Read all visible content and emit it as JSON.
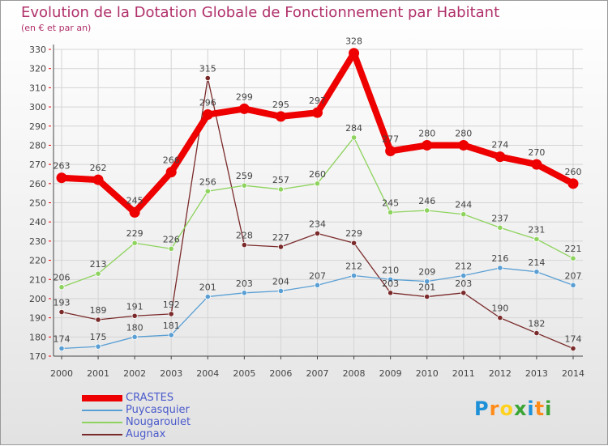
{
  "title": "Evolution de la Dotation Globale de Fonctionnement par Habitant",
  "subtitle": "(en € et par an)",
  "logo": {
    "letters": [
      "P",
      "r",
      "o",
      "x",
      "i",
      "t",
      "i"
    ],
    "colors": [
      "#1e90d8",
      "#ff8c1a",
      "#ffd21f",
      "#3aa535",
      "#1e90d8",
      "#ff8c1a",
      "#3aa535"
    ]
  },
  "chart_data": {
    "type": "line",
    "x": [
      "2000",
      "2001",
      "2002",
      "2003",
      "2004",
      "2005",
      "2006",
      "2007",
      "2008",
      "2009",
      "2010",
      "2011",
      "2012",
      "2013",
      "2014"
    ],
    "ylim": [
      170,
      330
    ],
    "yticks": [
      "170",
      "180",
      "190",
      "200",
      "210",
      "220",
      "230",
      "240",
      "250",
      "260",
      "270",
      "280",
      "290",
      "300",
      "310",
      "320",
      "330"
    ],
    "grid": true,
    "series": [
      {
        "name": "CRASTES",
        "color": "#ee0000",
        "values": [
          263,
          262,
          245,
          266,
          296,
          299,
          295,
          297,
          328,
          277,
          280,
          280,
          274,
          270,
          260
        ],
        "labels": [
          "263",
          "262",
          "245",
          "266",
          "296",
          "299",
          "295",
          "297",
          "328",
          "277",
          "280",
          "280",
          "274",
          "270",
          "260"
        ]
      },
      {
        "name": "Puycasquier",
        "color": "#5a9fd4",
        "values": [
          174,
          175,
          180,
          181,
          201,
          203,
          204,
          207,
          212,
          210,
          209,
          212,
          216,
          214,
          207
        ],
        "labels": [
          "174",
          "175",
          "180",
          "181",
          "201",
          "203",
          "204",
          "207",
          "212",
          "210",
          "209",
          "212",
          "216",
          "214",
          "207"
        ]
      },
      {
        "name": "Nougaroulet",
        "color": "#8ed35e",
        "values": [
          206,
          213,
          229,
          226,
          256,
          259,
          257,
          260,
          284,
          245,
          246,
          244,
          237,
          231,
          221
        ],
        "labels": [
          "206",
          "213",
          "229",
          "226",
          "256",
          "259",
          "257",
          "260",
          "284",
          "245",
          "246",
          "244",
          "237",
          "231",
          "221"
        ]
      },
      {
        "name": "Augnax",
        "color": "#7a2a2a",
        "values": [
          193,
          189,
          191,
          192,
          315,
          228,
          227,
          234,
          229,
          203,
          201,
          203,
          190,
          182,
          174
        ],
        "labels": [
          "193",
          "189",
          "191",
          "192",
          "315",
          "228",
          "227",
          "234",
          "229",
          "203",
          "201",
          "203",
          "190",
          "182",
          "174"
        ]
      }
    ]
  }
}
